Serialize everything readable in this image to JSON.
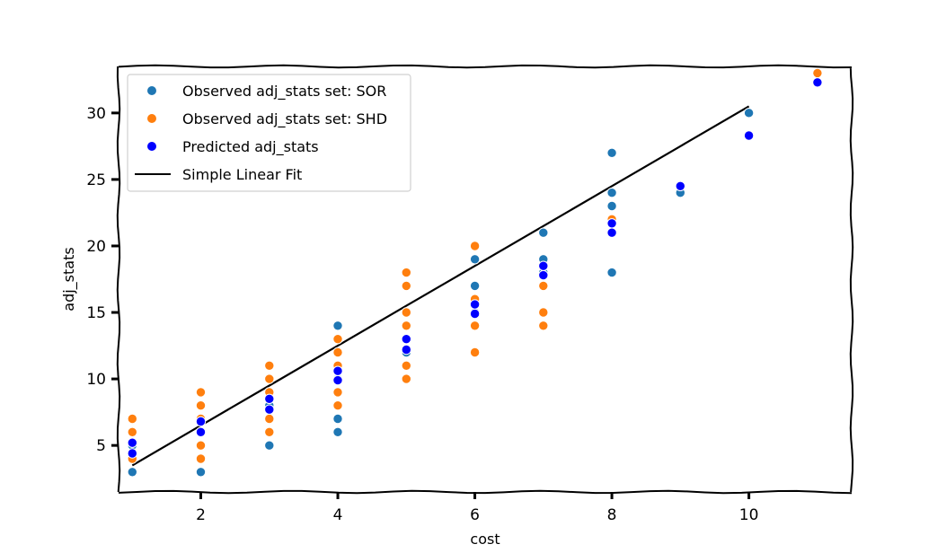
{
  "chart_data": {
    "type": "scatter",
    "title": "",
    "xlabel": "cost",
    "ylabel": "adj_stats",
    "xlim": [
      0.8,
      11.5
    ],
    "ylim": [
      1.5,
      33.5
    ],
    "xticks": [
      2,
      4,
      6,
      8,
      10
    ],
    "yticks": [
      5,
      10,
      15,
      20,
      25,
      30
    ],
    "grid": false,
    "legend_position": "top-left",
    "series": [
      {
        "name": "Observed adj_stats set: SOR",
        "kind": "scatter",
        "color": "#1f77b4",
        "points": [
          {
            "x": 1,
            "y": 3
          },
          {
            "x": 1,
            "y": 4
          },
          {
            "x": 1,
            "y": 5
          },
          {
            "x": 2,
            "y": 3
          },
          {
            "x": 2,
            "y": 6
          },
          {
            "x": 2,
            "y": 7
          },
          {
            "x": 3,
            "y": 5
          },
          {
            "x": 3,
            "y": 8
          },
          {
            "x": 3,
            "y": 9
          },
          {
            "x": 4,
            "y": 6
          },
          {
            "x": 4,
            "y": 7
          },
          {
            "x": 4,
            "y": 10
          },
          {
            "x": 4,
            "y": 11
          },
          {
            "x": 4,
            "y": 14
          },
          {
            "x": 5,
            "y": 12
          },
          {
            "x": 5,
            "y": 13
          },
          {
            "x": 6,
            "y": 15
          },
          {
            "x": 6,
            "y": 17
          },
          {
            "x": 6,
            "y": 19
          },
          {
            "x": 7,
            "y": 18
          },
          {
            "x": 7,
            "y": 19
          },
          {
            "x": 7,
            "y": 21
          },
          {
            "x": 8,
            "y": 18
          },
          {
            "x": 8,
            "y": 21
          },
          {
            "x": 8,
            "y": 23
          },
          {
            "x": 8,
            "y": 24
          },
          {
            "x": 8,
            "y": 27
          },
          {
            "x": 9,
            "y": 24
          },
          {
            "x": 10,
            "y": 30
          }
        ]
      },
      {
        "name": "Observed adj_stats set: SHD",
        "kind": "scatter",
        "color": "#ff7f0e",
        "points": [
          {
            "x": 1,
            "y": 4
          },
          {
            "x": 1,
            "y": 6
          },
          {
            "x": 1,
            "y": 7
          },
          {
            "x": 2,
            "y": 4
          },
          {
            "x": 2,
            "y": 5
          },
          {
            "x": 2,
            "y": 7
          },
          {
            "x": 2,
            "y": 8
          },
          {
            "x": 2,
            "y": 9
          },
          {
            "x": 3,
            "y": 6
          },
          {
            "x": 3,
            "y": 7
          },
          {
            "x": 3,
            "y": 9
          },
          {
            "x": 3,
            "y": 10
          },
          {
            "x": 3,
            "y": 11
          },
          {
            "x": 4,
            "y": 8
          },
          {
            "x": 4,
            "y": 9
          },
          {
            "x": 4,
            "y": 11
          },
          {
            "x": 4,
            "y": 12
          },
          {
            "x": 4,
            "y": 13
          },
          {
            "x": 5,
            "y": 10
          },
          {
            "x": 5,
            "y": 11
          },
          {
            "x": 5,
            "y": 14
          },
          {
            "x": 5,
            "y": 15
          },
          {
            "x": 5,
            "y": 17
          },
          {
            "x": 5,
            "y": 18
          },
          {
            "x": 6,
            "y": 12
          },
          {
            "x": 6,
            "y": 14
          },
          {
            "x": 6,
            "y": 16
          },
          {
            "x": 6,
            "y": 20
          },
          {
            "x": 7,
            "y": 14
          },
          {
            "x": 7,
            "y": 15
          },
          {
            "x": 7,
            "y": 17
          },
          {
            "x": 8,
            "y": 22
          },
          {
            "x": 11,
            "y": 33
          }
        ]
      },
      {
        "name": "Predicted adj_stats",
        "kind": "scatter",
        "color": "#0000ff",
        "points": [
          {
            "x": 1,
            "y": 4.4
          },
          {
            "x": 1,
            "y": 5.2
          },
          {
            "x": 2,
            "y": 6.0
          },
          {
            "x": 2,
            "y": 6.8
          },
          {
            "x": 3,
            "y": 7.7
          },
          {
            "x": 3,
            "y": 8.5
          },
          {
            "x": 4,
            "y": 9.9
          },
          {
            "x": 4,
            "y": 10.6
          },
          {
            "x": 5,
            "y": 12.2
          },
          {
            "x": 5,
            "y": 13.0
          },
          {
            "x": 6,
            "y": 14.9
          },
          {
            "x": 6,
            "y": 15.6
          },
          {
            "x": 7,
            "y": 17.8
          },
          {
            "x": 7,
            "y": 18.5
          },
          {
            "x": 8,
            "y": 21.0
          },
          {
            "x": 8,
            "y": 21.7
          },
          {
            "x": 9,
            "y": 24.5
          },
          {
            "x": 10,
            "y": 28.3
          },
          {
            "x": 11,
            "y": 32.3
          }
        ]
      },
      {
        "name": "Simple Linear Fit",
        "kind": "line",
        "color": "#000000",
        "points": [
          {
            "x": 1,
            "y": 3.5
          },
          {
            "x": 2,
            "y": 6.5
          },
          {
            "x": 3,
            "y": 9.5
          },
          {
            "x": 4,
            "y": 12.5
          },
          {
            "x": 5,
            "y": 15.5
          },
          {
            "x": 6,
            "y": 18.5
          },
          {
            "x": 7,
            "y": 21.5
          },
          {
            "x": 8,
            "y": 24.5
          },
          {
            "x": 9,
            "y": 27.5
          },
          {
            "x": 10,
            "y": 30.5
          }
        ]
      }
    ]
  }
}
